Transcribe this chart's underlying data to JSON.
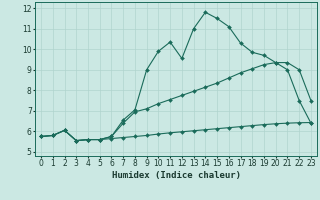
{
  "bg_color": "#cbe8e3",
  "grid_color": "#b0d4ce",
  "line_color": "#1a6b5a",
  "xlabel": "Humidex (Indice chaleur)",
  "xlim": [
    -0.5,
    23.5
  ],
  "ylim": [
    4.8,
    12.3
  ],
  "xticks": [
    0,
    1,
    2,
    3,
    4,
    5,
    6,
    7,
    8,
    9,
    10,
    11,
    12,
    13,
    14,
    15,
    16,
    17,
    18,
    19,
    20,
    21,
    22,
    23
  ],
  "yticks": [
    5,
    6,
    7,
    8,
    9,
    10,
    11,
    12
  ],
  "line1_x": [
    0,
    1,
    2,
    3,
    4,
    5,
    6,
    7,
    8,
    9,
    10,
    11,
    12,
    13,
    14,
    15,
    16,
    17,
    18,
    19,
    20,
    21,
    22,
    23
  ],
  "line1_y": [
    5.75,
    5.8,
    6.05,
    5.55,
    5.6,
    5.6,
    5.75,
    6.55,
    7.05,
    9.0,
    9.9,
    10.35,
    9.55,
    11.0,
    11.8,
    11.5,
    11.1,
    10.3,
    9.85,
    9.7,
    9.35,
    9.0,
    7.5,
    6.4
  ],
  "line2_x": [
    0,
    1,
    2,
    3,
    4,
    5,
    6,
    7,
    8,
    9,
    10,
    11,
    12,
    13,
    14,
    15,
    16,
    17,
    18,
    19,
    20,
    21,
    22,
    23
  ],
  "line2_y": [
    5.75,
    5.8,
    6.05,
    5.55,
    5.6,
    5.6,
    5.75,
    6.4,
    6.95,
    7.1,
    7.35,
    7.55,
    7.75,
    7.95,
    8.15,
    8.35,
    8.6,
    8.85,
    9.05,
    9.25,
    9.35,
    9.35,
    9.0,
    7.5
  ],
  "line3_x": [
    0,
    1,
    2,
    3,
    4,
    5,
    6,
    7,
    8,
    9,
    10,
    11,
    12,
    13,
    14,
    15,
    16,
    17,
    18,
    19,
    20,
    21,
    22,
    23
  ],
  "line3_y": [
    5.75,
    5.8,
    6.05,
    5.55,
    5.6,
    5.6,
    5.65,
    5.7,
    5.75,
    5.8,
    5.87,
    5.93,
    5.98,
    6.03,
    6.08,
    6.13,
    6.18,
    6.23,
    6.28,
    6.33,
    6.37,
    6.4,
    6.42,
    6.43
  ]
}
